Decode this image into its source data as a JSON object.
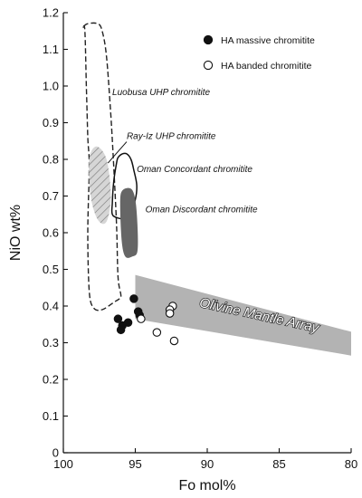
{
  "chart_data": {
    "type": "scatter",
    "title": "",
    "xlabel": "Fo mol%",
    "ylabel": "NiO wt%",
    "xlim": [
      100,
      80
    ],
    "ylim": [
      0,
      1.2
    ],
    "x_reversed": true,
    "xticks": [
      "100",
      "95",
      "90",
      "85",
      "80"
    ],
    "yticks": [
      "0",
      "0.1",
      "0.2",
      "0.3",
      "0.4",
      "0.5",
      "0.6",
      "0.7",
      "0.8",
      "0.9",
      "1.0",
      "1.1",
      "1.2"
    ],
    "legend": {
      "placement": "top-right",
      "entries": [
        {
          "label": "HA massive chromitite",
          "marker": "filled-circle"
        },
        {
          "label": "HA banded chromitite",
          "marker": "open-circle"
        }
      ]
    },
    "series": [
      {
        "name": "HA massive chromitite",
        "marker": "filled-circle",
        "color": "#111111",
        "points": [
          {
            "x": 95.1,
            "y": 0.42
          },
          {
            "x": 94.8,
            "y": 0.385
          },
          {
            "x": 94.7,
            "y": 0.375
          },
          {
            "x": 96.2,
            "y": 0.365
          },
          {
            "x": 95.5,
            "y": 0.355
          },
          {
            "x": 95.9,
            "y": 0.347
          },
          {
            "x": 96.0,
            "y": 0.335
          }
        ]
      },
      {
        "name": "HA banded chromitite",
        "marker": "open-circle",
        "color": "#111111",
        "points": [
          {
            "x": 92.4,
            "y": 0.4
          },
          {
            "x": 92.6,
            "y": 0.39
          },
          {
            "x": 92.6,
            "y": 0.38
          },
          {
            "x": 94.6,
            "y": 0.365
          },
          {
            "x": 93.5,
            "y": 0.328
          },
          {
            "x": 92.3,
            "y": 0.305
          }
        ]
      }
    ],
    "fields": [
      {
        "label": "Luobusa UHP chromitite",
        "style": "dashed-outline",
        "label_at": [
          96.6,
          0.975
        ],
        "polygon": [
          [
            98.6,
            1.16
          ],
          [
            98.5,
            1.15
          ],
          [
            98.4,
            1.0
          ],
          [
            98.3,
            0.86
          ],
          [
            98.2,
            0.78
          ],
          [
            98.3,
            0.6
          ],
          [
            98.2,
            0.44
          ],
          [
            97.9,
            0.395
          ],
          [
            97.3,
            0.39
          ],
          [
            96.5,
            0.41
          ],
          [
            96.1,
            0.42
          ],
          [
            96.0,
            0.43
          ],
          [
            96.2,
            0.48
          ],
          [
            96.3,
            0.62
          ],
          [
            96.5,
            0.78
          ],
          [
            96.7,
            0.92
          ],
          [
            97.0,
            1.08
          ],
          [
            97.3,
            1.15
          ],
          [
            97.6,
            1.17
          ],
          [
            98.3,
            1.17
          ]
        ]
      },
      {
        "label": "Ray-Iz UHP chromitite",
        "style": "hatched",
        "label_at": [
          95.6,
          0.855
        ],
        "polygon": [
          [
            98.2,
            0.8
          ],
          [
            97.7,
            0.835
          ],
          [
            97.0,
            0.8
          ],
          [
            96.7,
            0.7
          ],
          [
            97.0,
            0.63
          ],
          [
            97.6,
            0.635
          ],
          [
            98.1,
            0.7
          ]
        ],
        "leader": [
          [
            95.6,
            0.848
          ],
          [
            96.9,
            0.79
          ]
        ]
      },
      {
        "label": "Oman Concordant chromitite",
        "style": "solid-outline",
        "label_at": [
          94.9,
          0.765
        ],
        "polygon": [
          [
            96.3,
            0.79
          ],
          [
            96.5,
            0.74
          ],
          [
            96.6,
            0.68
          ],
          [
            96.6,
            0.65
          ],
          [
            96.2,
            0.64
          ],
          [
            95.7,
            0.64
          ],
          [
            95.3,
            0.66
          ],
          [
            95.0,
            0.69
          ],
          [
            94.9,
            0.73
          ],
          [
            95.1,
            0.77
          ],
          [
            95.3,
            0.8
          ],
          [
            95.6,
            0.815
          ],
          [
            95.9,
            0.815
          ],
          [
            96.2,
            0.805
          ]
        ]
      },
      {
        "label": "Oman Discordant chromitite",
        "style": "dark-fill",
        "label_at": [
          94.3,
          0.655
        ],
        "polygon": [
          [
            95.9,
            0.715
          ],
          [
            95.3,
            0.72
          ],
          [
            95.0,
            0.69
          ],
          [
            94.85,
            0.62
          ],
          [
            94.85,
            0.55
          ],
          [
            95.2,
            0.535
          ],
          [
            95.7,
            0.535
          ],
          [
            95.95,
            0.58
          ],
          [
            96.05,
            0.68
          ]
        ]
      }
    ],
    "mantle_array": {
      "label": "Olivine Mantle Array",
      "color": "#b3b3b3",
      "polygon": [
        [
          95.0,
          0.485
        ],
        [
          80.0,
          0.33
        ],
        [
          80.0,
          0.265
        ],
        [
          95.0,
          0.365
        ]
      ]
    }
  }
}
